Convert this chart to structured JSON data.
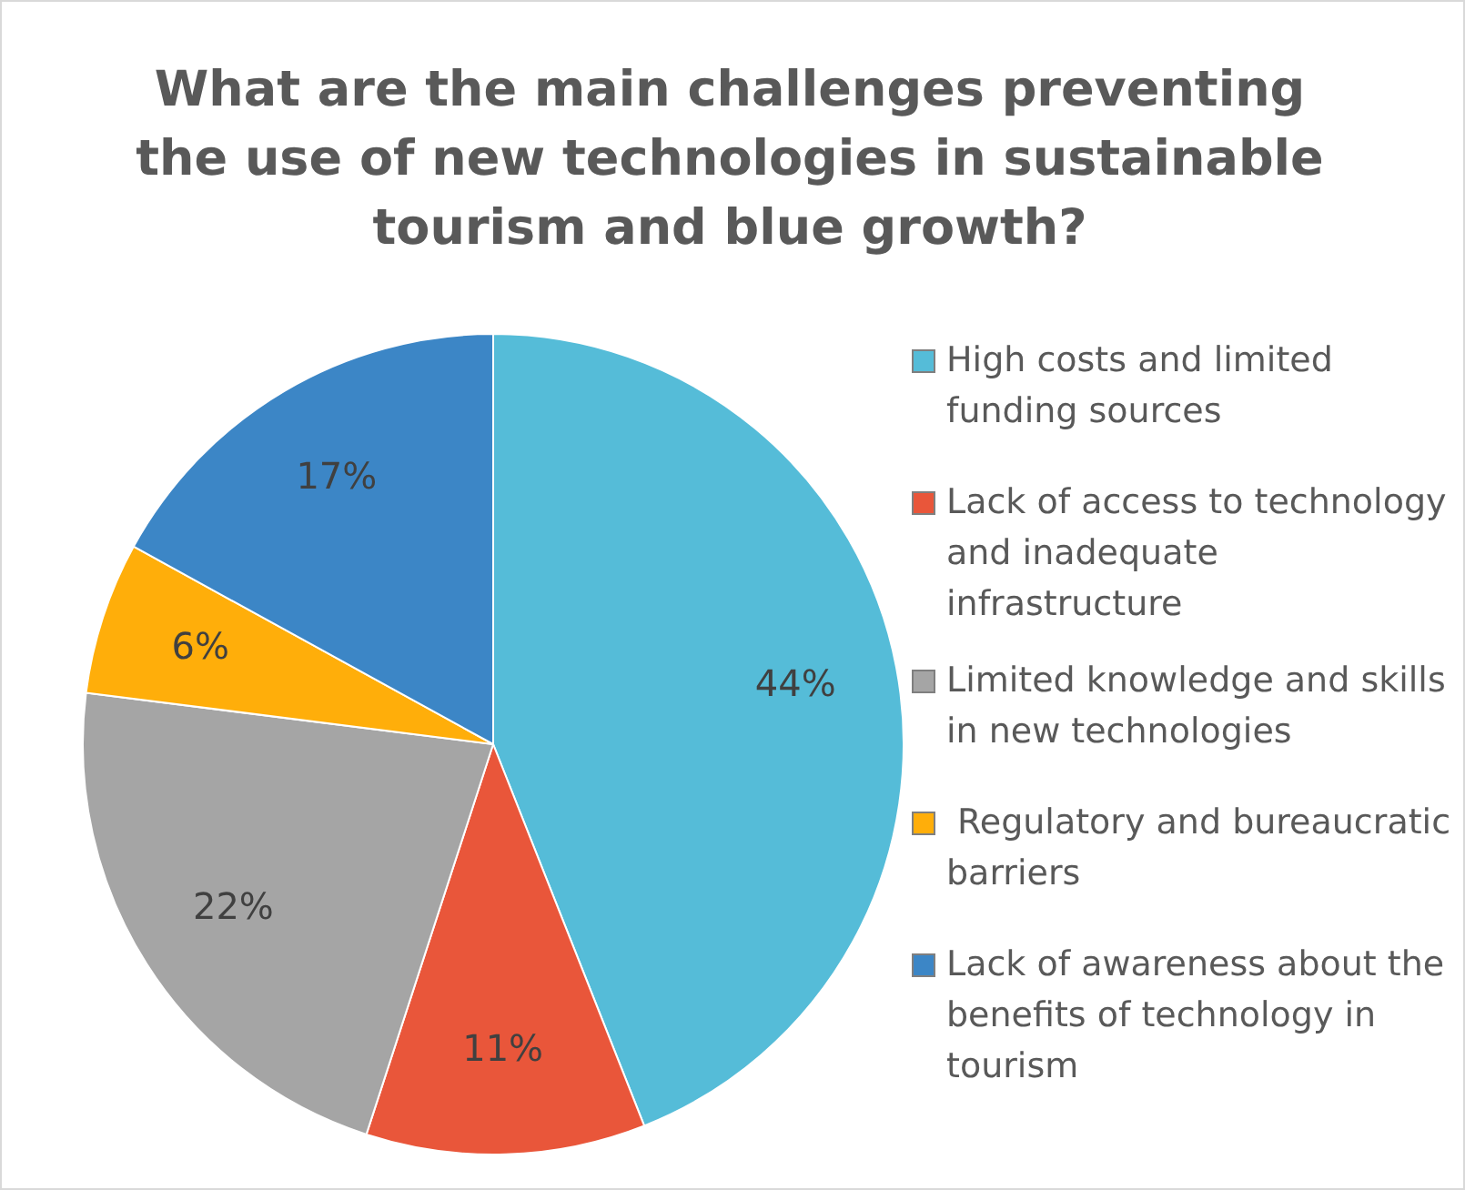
{
  "chart_data": {
    "type": "pie",
    "title": "What are the main challenges preventing the use of new technologies in sustainable tourism and blue growth?",
    "categories": [
      "High costs and limited funding sources",
      "Lack of access to technology and inadequate infrastructure",
      "Limited knowledge and skills in new technologies",
      " Regulatory and bureaucratic barriers",
      "Lack of awareness about the benefits of technology in tourism"
    ],
    "values": [
      44,
      11,
      22,
      6,
      17
    ],
    "colors": [
      "#55bcd8",
      "#e9563a",
      "#a5a5a5",
      "#ffae0a",
      "#3c86c6"
    ],
    "value_labels": [
      "44%",
      "11%",
      "22%",
      "6%",
      "17%"
    ],
    "legend": "right"
  }
}
